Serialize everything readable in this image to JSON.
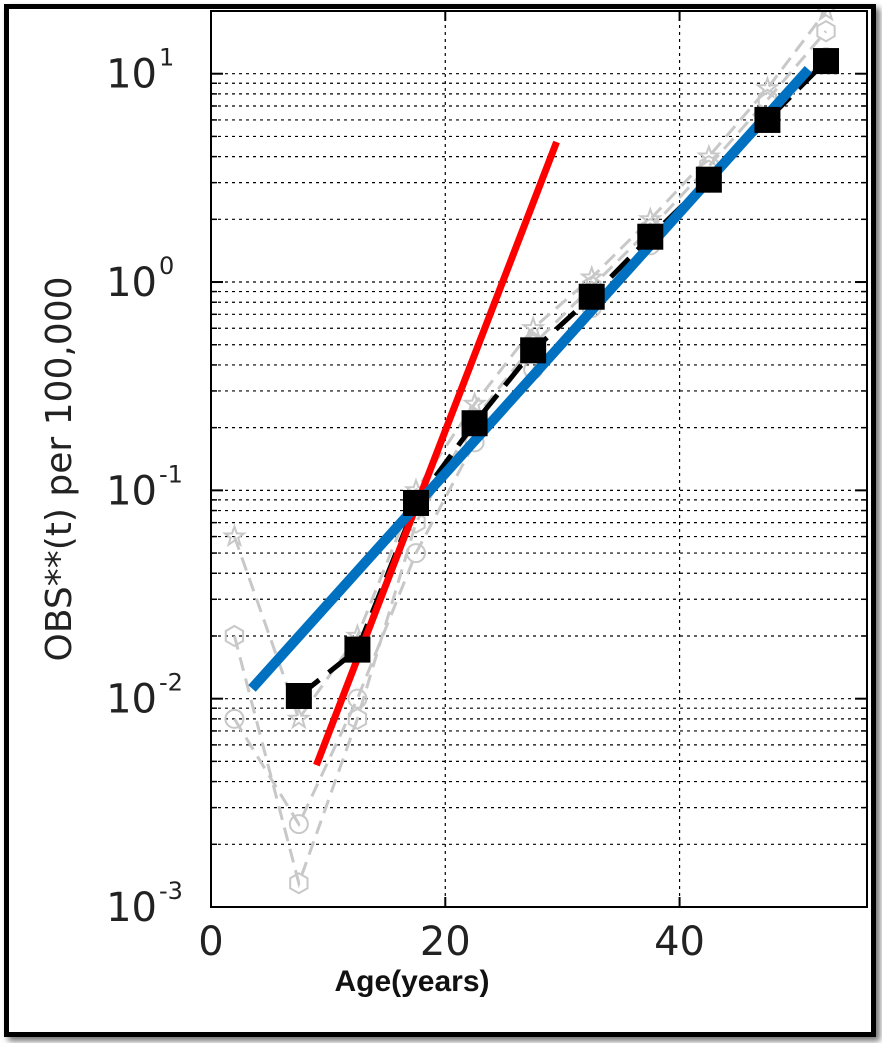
{
  "chart_data": {
    "type": "line",
    "title": "",
    "xlabel": "Age(years)",
    "ylabel": "OBS**(t) per 100,000",
    "xlim": [
      0,
      56
    ],
    "ylim": [
      0.001,
      20
    ],
    "yscale": "log",
    "grid": true,
    "x_ticks": [
      {
        "value": 0,
        "label": "0"
      },
      {
        "value": 20,
        "label": "20"
      },
      {
        "value": 40,
        "label": "40"
      }
    ],
    "y_ticks": [
      {
        "value": 0.001,
        "base": "10",
        "exp": "-3"
      },
      {
        "value": 0.01,
        "base": "10",
        "exp": "-2"
      },
      {
        "value": 0.1,
        "base": "10",
        "exp": "-1"
      },
      {
        "value": 1,
        "base": "10",
        "exp": "0"
      },
      {
        "value": 10,
        "base": "10",
        "exp": "1"
      }
    ],
    "series": [
      {
        "style": "background-dashed",
        "marker": "circle",
        "color": "#c8c8c8",
        "x": [
          2,
          7.5,
          12.5,
          17.5,
          22.5,
          27.5,
          32.5,
          37.5,
          42.5,
          47.5,
          52.5
        ],
        "y": [
          0.008,
          0.0025,
          0.01,
          0.05,
          0.17,
          0.38,
          0.75,
          1.5,
          3.0,
          6.0,
          12.0
        ]
      },
      {
        "style": "background-dashed",
        "marker": "hexagon",
        "color": "#c8c8c8",
        "x": [
          2,
          7.5,
          12.5,
          17.5,
          22.5,
          27.5,
          32.5,
          37.5,
          42.5,
          47.5,
          52.5
        ],
        "y": [
          0.02,
          0.0013,
          0.008,
          0.07,
          0.22,
          0.5,
          0.95,
          1.8,
          3.6,
          7.5,
          16.0
        ]
      },
      {
        "style": "background-dashed",
        "marker": "star",
        "color": "#c8c8c8",
        "x": [
          2,
          7.5,
          12.5,
          17.5,
          22.5,
          27.5,
          32.5,
          37.5,
          42.5,
          47.5,
          52.5
        ],
        "y": [
          0.06,
          0.008,
          0.02,
          0.1,
          0.26,
          0.6,
          1.05,
          2.0,
          4.0,
          8.5,
          20.0
        ]
      },
      {
        "style": "main",
        "marker": "square",
        "color": "#000000",
        "x": [
          7.5,
          12.5,
          17.5,
          22.5,
          27.5,
          32.5,
          37.5,
          42.5,
          47.5,
          52.5
        ],
        "y": [
          0.0103,
          0.0172,
          0.087,
          0.21,
          0.47,
          0.85,
          1.65,
          3.1,
          6.0,
          11.5
        ]
      },
      {
        "style": "fit",
        "color": "#ff0000",
        "x": [
          9,
          29.5
        ],
        "y": [
          0.0048,
          4.7
        ]
      },
      {
        "style": "fit",
        "color": "#0070c0",
        "x": [
          3.5,
          51
        ],
        "y": [
          0.0112,
          10.5
        ]
      }
    ]
  }
}
